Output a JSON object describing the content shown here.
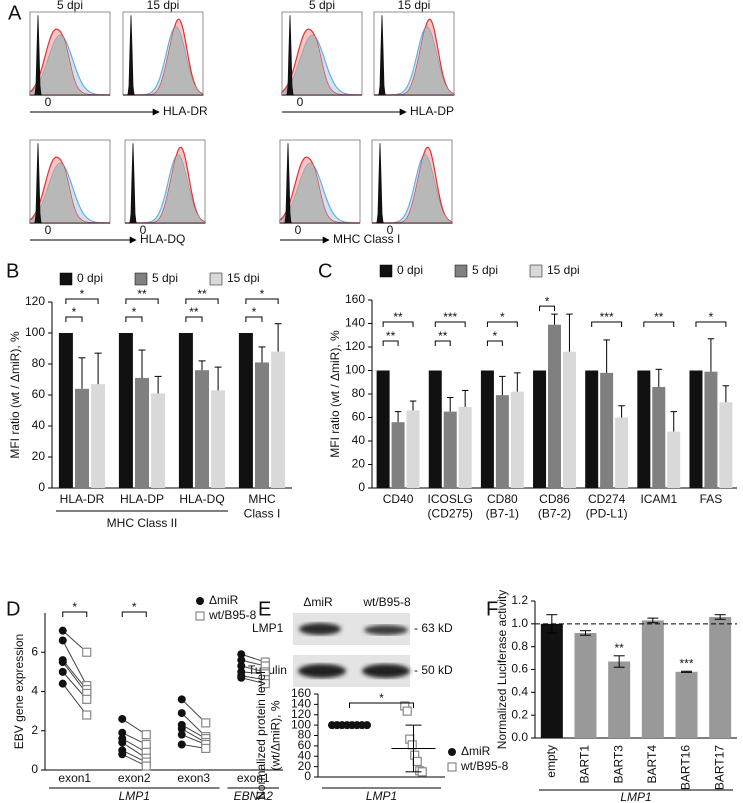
{
  "panel_labels": [
    "A",
    "B",
    "C",
    "D",
    "E",
    "F"
  ],
  "panel_a": {
    "column_titles": [
      "5 dpi",
      "15 dpi"
    ],
    "markers": [
      {
        "label": "HLA-DR",
        "zero_labels": [
          "0"
        ]
      },
      {
        "label": "HLA-DP",
        "zero_labels": [
          "0"
        ]
      },
      {
        "label": "HLA-DQ",
        "zero_labels": [
          "0",
          "0"
        ]
      },
      {
        "label": "MHC Class I",
        "zero_labels": [
          "0",
          "0"
        ]
      }
    ]
  },
  "panel_e_blot": {
    "lanes": [
      "ΔmiR",
      "wt/B95-8"
    ],
    "rows": [
      {
        "label": "LMP1",
        "size": "- 63 kD"
      },
      {
        "label": "Tubulin",
        "size": "- 50 kD"
      }
    ]
  },
  "chart_data": [
    {
      "type": "bar",
      "y_label": "MFI ratio (wt / ΔmiR), %",
      "categories": [
        "HLA-DR",
        "HLA-DP",
        "HLA-DQ",
        "MHC\nClass I"
      ],
      "category_groups": [
        "MHC Class II",
        "MHC Class II",
        "MHC Class II",
        null
      ],
      "series": [
        {
          "name": "0 dpi",
          "color": "#111111",
          "values": [
            100,
            100,
            100,
            100
          ]
        },
        {
          "name": "5 dpi",
          "color": "#808080",
          "values": [
            64,
            71,
            76,
            81
          ],
          "error": [
            20,
            18,
            6,
            10
          ],
          "significance": [
            "*",
            "*",
            "**",
            "*"
          ]
        },
        {
          "name": "15 dpi",
          "color": "#d9d9d9",
          "values": [
            67,
            61,
            63,
            88
          ],
          "error": [
            20,
            11,
            15,
            18
          ],
          "significance": [
            "*",
            "**",
            "**",
            "*"
          ]
        }
      ],
      "error_direction": "up",
      "legend": "top",
      "ylim": [
        0,
        120
      ],
      "yticks": [
        0,
        20,
        40,
        60,
        80,
        100,
        120
      ]
    },
    {
      "type": "bar",
      "y_label": "MFI ratio (wt / ΔmiR), %",
      "categories": [
        "CD40",
        "ICOSLG\n(CD275)",
        "CD80\n(B7-1)",
        "CD86\n(B7-2)",
        "CD274\n(PD-L1)",
        "ICAM1",
        "FAS"
      ],
      "series": [
        {
          "name": "0 dpi",
          "color": "#111111",
          "values": [
            100,
            100,
            100,
            100,
            100,
            100,
            100
          ]
        },
        {
          "name": "5 dpi",
          "color": "#808080",
          "values": [
            56,
            65,
            79,
            139,
            98,
            86,
            99
          ],
          "error": [
            9,
            12,
            16,
            9,
            28,
            15,
            28
          ],
          "significance": [
            "**",
            "**",
            "*",
            "*",
            null,
            null,
            null
          ]
        },
        {
          "name": "15 dpi",
          "color": "#d9d9d9",
          "values": [
            66,
            69,
            82,
            116,
            60,
            48,
            73
          ],
          "error": [
            8,
            14,
            16,
            32,
            10,
            17,
            14
          ],
          "significance": [
            "**",
            "***",
            "*",
            null,
            "***",
            "**",
            "*"
          ]
        }
      ],
      "error_direction": "up",
      "legend": "top",
      "ylim": [
        0,
        160
      ],
      "yticks": [
        0,
        20,
        40,
        60,
        80,
        100,
        120,
        140,
        160
      ]
    },
    {
      "type": "dot",
      "y_label": "EBV gene expression",
      "categories": [
        "exon1",
        "exon2",
        "exon3",
        "exon1"
      ],
      "category_groups": [
        "LMP1",
        "LMP1",
        "LMP1",
        "EBNA2"
      ],
      "group_italic": true,
      "paired": true,
      "series": [
        {
          "name": "ΔmiR",
          "marker": "circle",
          "color": "#111111",
          "values": [
            [
              7.1,
              6.6,
              5.6,
              5.5,
              5.0,
              4.4
            ],
            [
              2.6,
              1.9,
              1.6,
              1.4,
              1.0,
              0.8
            ],
            [
              3.6,
              2.9,
              2.3,
              2.1,
              1.8,
              1.3
            ],
            [
              5.9,
              5.6,
              5.3,
              5.0,
              4.8,
              4.7
            ]
          ]
        },
        {
          "name": "wt/B95-8",
          "marker": "square",
          "color": "#888888",
          "values": [
            [
              6.0,
              4.3,
              4.1,
              3.9,
              3.6,
              2.8
            ],
            [
              1.8,
              1.3,
              0.9,
              0.6,
              0.4,
              0.2
            ],
            [
              2.4,
              1.7,
              1.6,
              1.4,
              1.3,
              1.1
            ],
            [
              5.5,
              5.3,
              5.0,
              4.9,
              4.6,
              4.4
            ]
          ]
        }
      ],
      "significance": [
        "*",
        "*",
        null,
        null
      ],
      "legend": "upper right",
      "ylim": [
        0,
        8
      ],
      "yticks": [
        0,
        2,
        4,
        6
      ]
    },
    {
      "type": "dot",
      "y_label": "Normalized protein level\n(wt/ΔmiR), %",
      "categories": [
        null
      ],
      "category_groups": [
        "LMP1"
      ],
      "group_italic": true,
      "paired": false,
      "series": [
        {
          "name": "ΔmiR",
          "marker": "circle",
          "color": "#111111",
          "values": [
            [
              100,
              100,
              100,
              100,
              100,
              100,
              100,
              100
            ]
          ]
        },
        {
          "name": "wt/B95-8",
          "marker": "square",
          "color": "#888888",
          "values": [
            [
              137,
              127,
              73,
              62,
              42,
              30,
              12,
              10
            ]
          ],
          "mean": [
            55
          ],
          "error": [
            45
          ]
        }
      ],
      "significance": [
        "*"
      ],
      "legend": "right",
      "ylim": [
        0,
        160
      ],
      "yticks": [
        0,
        20,
        40,
        60,
        80,
        100,
        120,
        140,
        160
      ]
    },
    {
      "type": "bar",
      "y_label": "Normalized Luciferase activity",
      "categories": [
        "empty",
        "BART1",
        "BART3",
        "BART4",
        "BART16",
        "BART17"
      ],
      "category_groups": [
        "LMP1",
        "LMP1",
        "LMP1",
        "LMP1",
        "LMP1",
        "LMP1"
      ],
      "group_italic": true,
      "values": [
        1,
        0.92,
        0.67,
        1.03,
        0.58,
        1.06
      ],
      "error": [
        0.08,
        0.02,
        0.05,
        0.02,
        0.005,
        0.02
      ],
      "colors": [
        "#111111",
        "#999999",
        "#999999",
        "#999999",
        "#999999",
        "#999999"
      ],
      "significance": [
        null,
        null,
        "**",
        null,
        "***",
        null
      ],
      "error_direction": "both",
      "reference_line": 1,
      "ylim": [
        0,
        1.2
      ],
      "yticks": [
        {
          "value": 0,
          "label": "0.0"
        },
        0.2,
        0.4,
        0.6,
        0.8,
        {
          "value": 1,
          "label": "1.0"
        },
        1.2
      ]
    }
  ]
}
